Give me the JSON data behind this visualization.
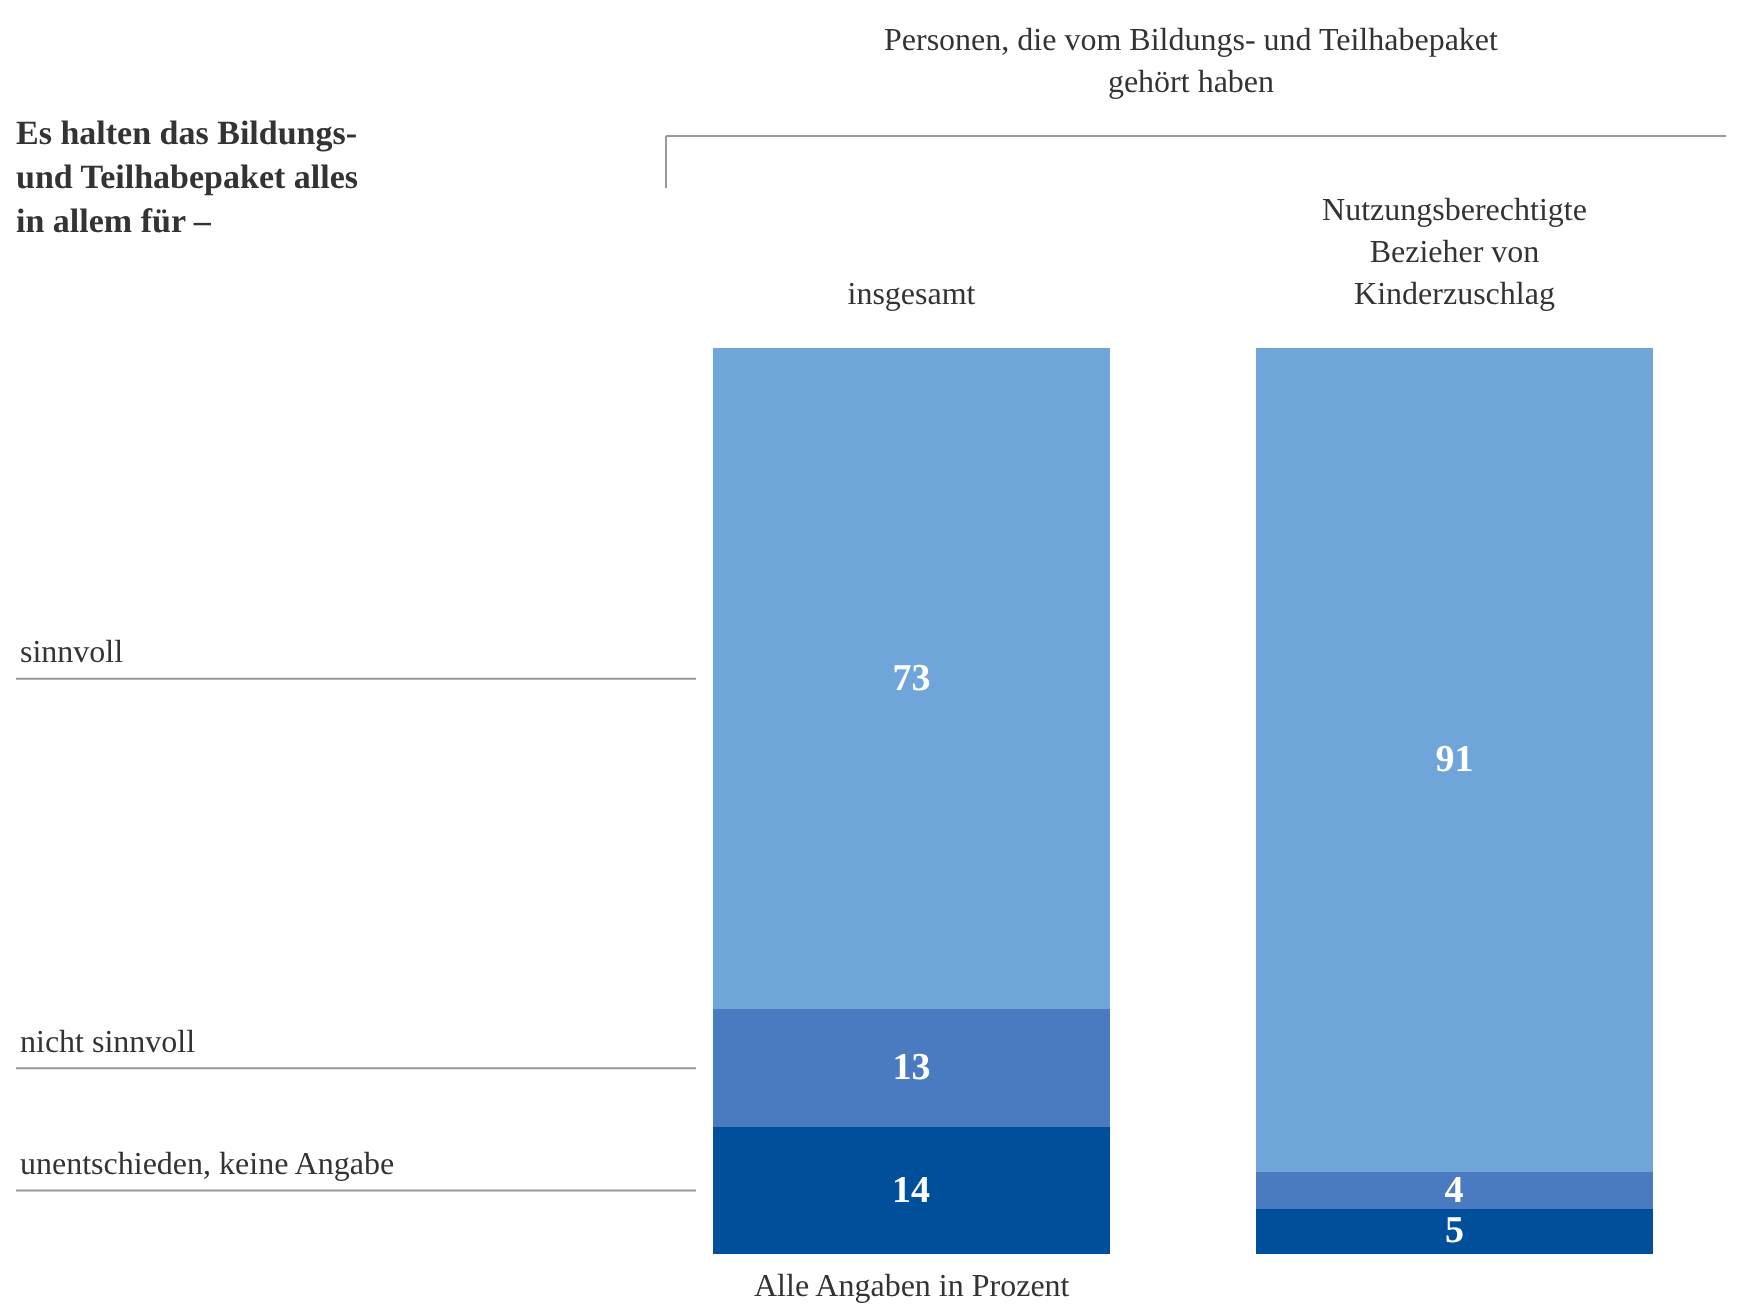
{
  "chart_data": {
    "type": "bar",
    "stacked": true,
    "title": "Es halten das Bildungs- und Teilhabepaket alles in allem für –",
    "subtitle": "Personen, die vom Bildungs- und Teilhabepaket gehört haben",
    "categories": [
      "insgesamt",
      "Nutzungsberechtigte Bezieher von Kinderzuschlag"
    ],
    "series": [
      {
        "name": "unentschieden, keine Angabe",
        "color": "#004f9b",
        "values": [
          14,
          5
        ]
      },
      {
        "name": "nicht sinnvoll",
        "color": "#4a7bc0",
        "values": [
          13,
          4
        ]
      },
      {
        "name": "sinnvoll",
        "color": "#6fa5d8",
        "values": [
          73,
          91
        ]
      }
    ],
    "data_labels": true,
    "annotations": [
      "Alle Angaben in Prozent"
    ]
  }
}
